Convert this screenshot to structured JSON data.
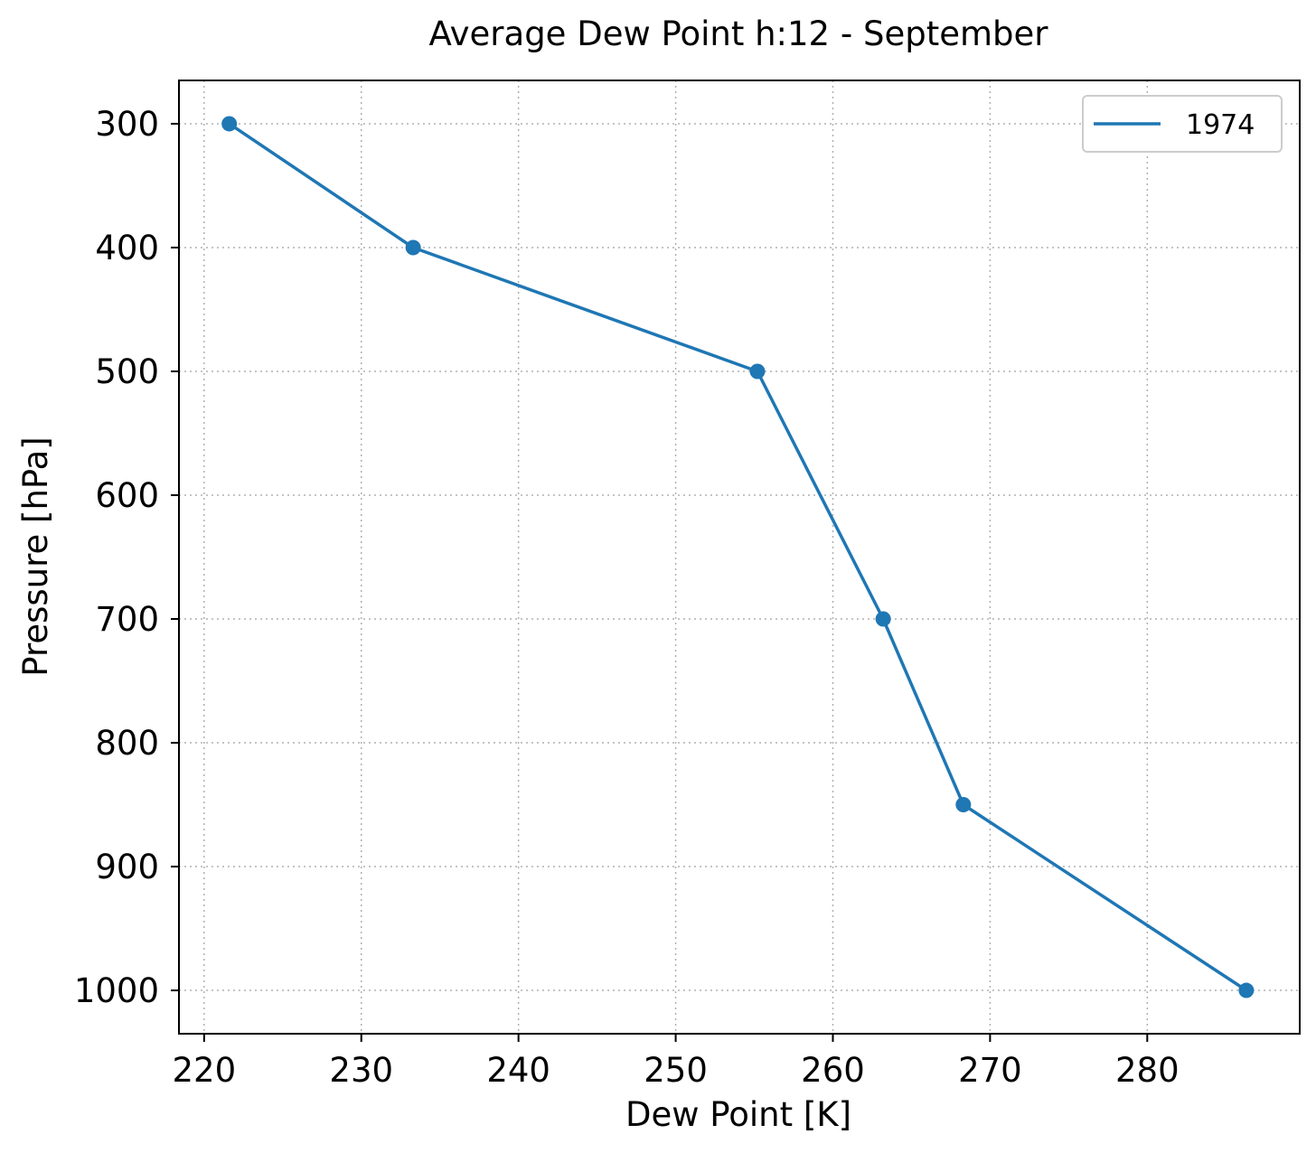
{
  "chart_data": {
    "type": "line",
    "title": "Average Dew Point h:12 - September",
    "xlabel": "Dew Point [K]",
    "ylabel": "Pressure [hPa]",
    "xlim": [
      218.4,
      289.7
    ],
    "ylim": [
      1035,
      265
    ],
    "y_inverted": true,
    "x_ticks": [
      220,
      230,
      240,
      250,
      260,
      270,
      280
    ],
    "y_ticks": [
      300,
      400,
      500,
      600,
      700,
      800,
      900,
      1000
    ],
    "grid": true,
    "legend_position": "top-right",
    "series": [
      {
        "name": "1974",
        "color": "#1f77b4",
        "marker": "circle",
        "points": [
          {
            "x": 221.6,
            "y": 300
          },
          {
            "x": 233.3,
            "y": 400
          },
          {
            "x": 255.2,
            "y": 500
          },
          {
            "x": 263.2,
            "y": 700
          },
          {
            "x": 268.3,
            "y": 850
          },
          {
            "x": 286.3,
            "y": 1000
          }
        ]
      }
    ]
  }
}
